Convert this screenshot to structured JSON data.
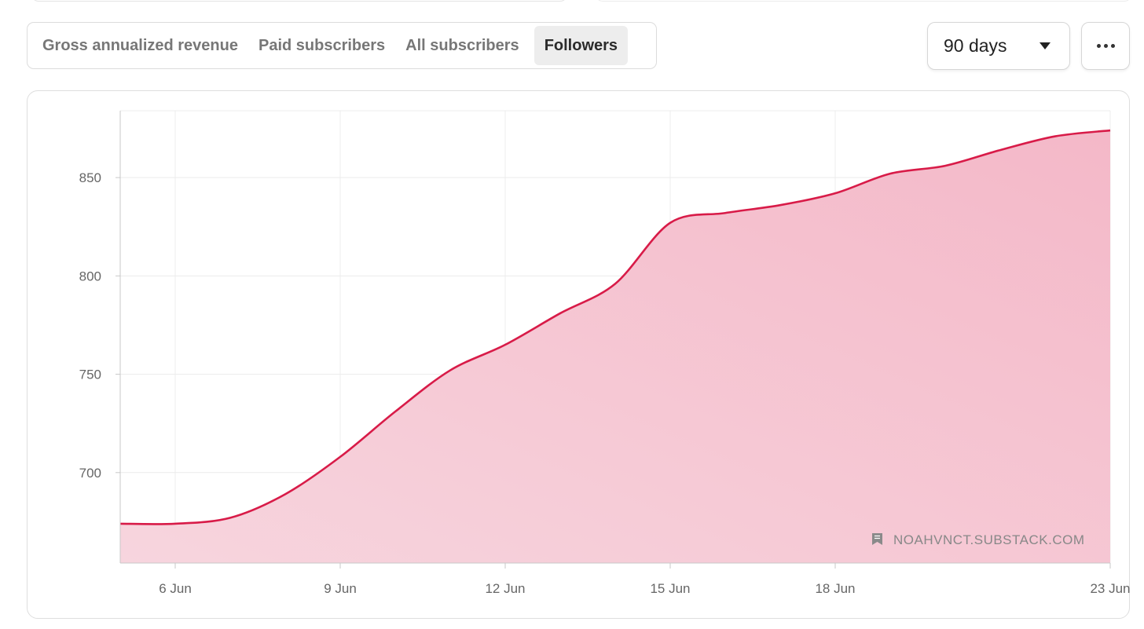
{
  "tabs": [
    {
      "label": "Gross annualized revenue",
      "active": false
    },
    {
      "label": "Paid subscribers",
      "active": false
    },
    {
      "label": "All subscribers",
      "active": false
    },
    {
      "label": "Followers",
      "active": true
    }
  ],
  "range_select": {
    "value": "90 days",
    "icon": "triangle-down-icon"
  },
  "more_button": {
    "icon": "ellipsis-icon"
  },
  "watermark": {
    "text": "NOAHVNCT.SUBSTACK.COM",
    "icon": "bookmark-icon"
  },
  "colors": {
    "line": "#d81b48",
    "fill": "#f4b8c8",
    "grid": "#ececec",
    "axis": "#c8c8c8"
  },
  "chart_data": {
    "type": "area",
    "title": "",
    "xlabel": "",
    "ylabel": "",
    "x_range": [
      "2024-06-05",
      "2024-06-23"
    ],
    "ylim": [
      654,
      884
    ],
    "yticks": [
      700,
      750,
      800,
      850
    ],
    "xticks": [
      {
        "date": "2024-06-06",
        "label": "6 Jun"
      },
      {
        "date": "2024-06-09",
        "label": "9 Jun"
      },
      {
        "date": "2024-06-12",
        "label": "12 Jun"
      },
      {
        "date": "2024-06-15",
        "label": "15 Jun"
      },
      {
        "date": "2024-06-18",
        "label": "18 Jun"
      },
      {
        "date": "2024-06-23",
        "label": "23 Jun"
      }
    ],
    "grid": true,
    "series": [
      {
        "points": [
          {
            "date": "2024-06-05",
            "y": 674
          },
          {
            "date": "2024-06-06",
            "y": 674
          },
          {
            "date": "2024-06-07",
            "y": 677
          },
          {
            "date": "2024-06-08",
            "y": 689
          },
          {
            "date": "2024-06-09",
            "y": 708
          },
          {
            "date": "2024-06-10",
            "y": 731
          },
          {
            "date": "2024-06-11",
            "y": 752
          },
          {
            "date": "2024-06-12",
            "y": 765
          },
          {
            "date": "2024-06-13",
            "y": 781
          },
          {
            "date": "2024-06-14",
            "y": 796
          },
          {
            "date": "2024-06-15",
            "y": 827
          },
          {
            "date": "2024-06-16",
            "y": 832
          },
          {
            "date": "2024-06-17",
            "y": 836
          },
          {
            "date": "2024-06-18",
            "y": 842
          },
          {
            "date": "2024-06-19",
            "y": 852
          },
          {
            "date": "2024-06-20",
            "y": 856
          },
          {
            "date": "2024-06-21",
            "y": 864
          },
          {
            "date": "2024-06-22",
            "y": 871
          },
          {
            "date": "2024-06-23",
            "y": 874
          }
        ]
      }
    ]
  }
}
